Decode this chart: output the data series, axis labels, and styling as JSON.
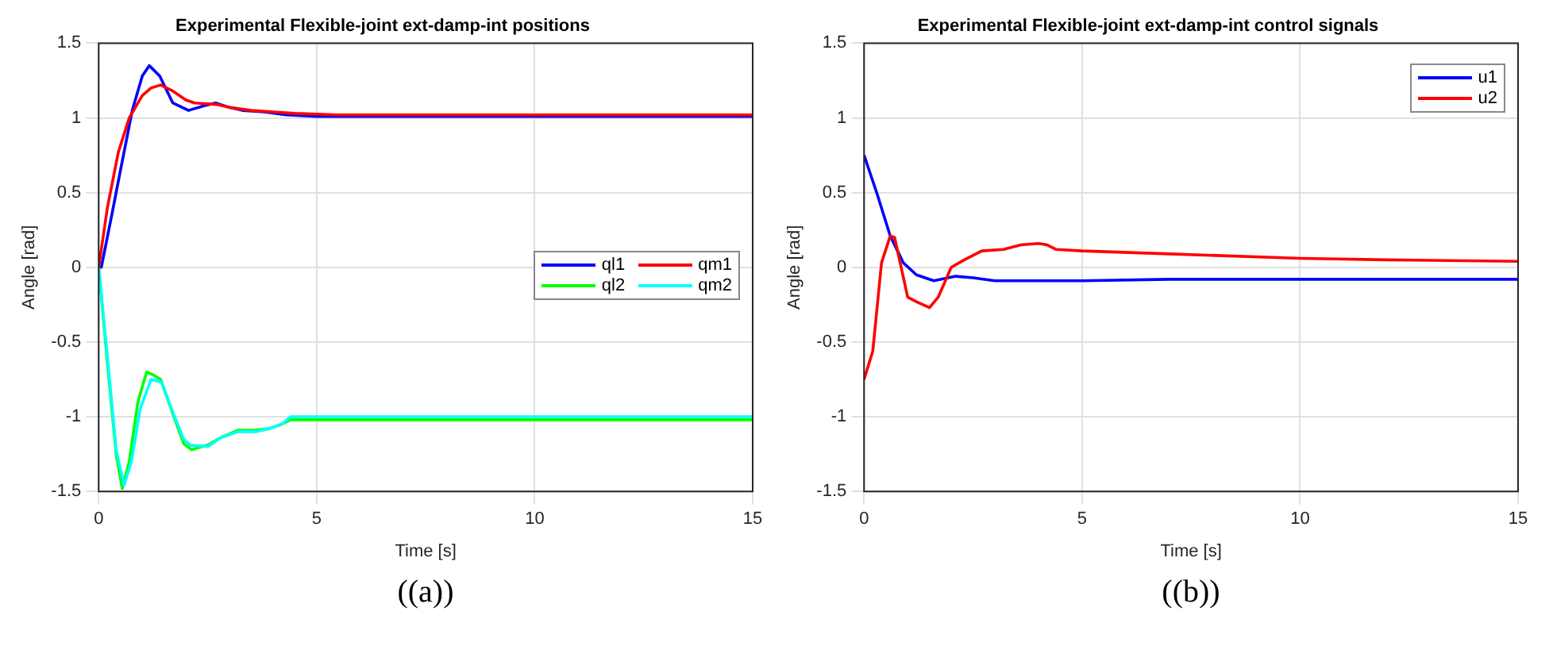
{
  "chart_data": [
    {
      "type": "line",
      "title": "Experimental Flexible-joint ext-damp-int positions",
      "xlabel": "Time [s]",
      "ylabel": "Angle [rad]",
      "annotations": [
        "((a))"
      ],
      "xlim": [
        0,
        15
      ],
      "xticks": [
        0,
        5,
        10,
        15
      ],
      "ylim": [
        -1.5,
        1.5
      ],
      "yticks": [
        -1.5,
        -1,
        -0.5,
        0,
        0.5,
        1,
        1.5
      ],
      "grid": true,
      "legend": "right",
      "series": [
        {
          "name": "ql1",
          "color": "#0000ff",
          "x": [
            0,
            0.06,
            0.3,
            0.5,
            0.77,
            1.0,
            1.16,
            1.4,
            1.7,
            2.06,
            2.4,
            2.68,
            3.0,
            3.3,
            3.8,
            4.3,
            5,
            7,
            10,
            15
          ],
          "values": [
            0,
            0,
            0.35,
            0.65,
            1.05,
            1.28,
            1.35,
            1.28,
            1.1,
            1.05,
            1.08,
            1.1,
            1.07,
            1.05,
            1.04,
            1.02,
            1.01,
            1.01,
            1.01,
            1.01
          ]
        },
        {
          "name": "qm1",
          "color": "#ff0000",
          "x": [
            0,
            0.2,
            0.45,
            0.7,
            1.0,
            1.2,
            1.42,
            1.7,
            2.0,
            2.2,
            2.7,
            3.0,
            3.5,
            4.0,
            4.5,
            5.5,
            7,
            10,
            15
          ],
          "values": [
            0,
            0.4,
            0.77,
            1.0,
            1.15,
            1.2,
            1.22,
            1.18,
            1.12,
            1.1,
            1.09,
            1.07,
            1.05,
            1.04,
            1.03,
            1.02,
            1.02,
            1.02,
            1.02
          ]
        },
        {
          "name": "ql2",
          "color": "#00ff00",
          "x": [
            0,
            0.2,
            0.4,
            0.54,
            0.7,
            0.9,
            1.1,
            1.25,
            1.42,
            1.7,
            1.95,
            2.13,
            2.5,
            2.8,
            3.2,
            3.6,
            3.9,
            4.2,
            4.4,
            5,
            10,
            15
          ],
          "values": [
            0,
            -0.64,
            -1.25,
            -1.48,
            -1.3,
            -0.9,
            -0.7,
            -0.72,
            -0.75,
            -0.98,
            -1.18,
            -1.22,
            -1.19,
            -1.14,
            -1.09,
            -1.09,
            -1.08,
            -1.05,
            -1.02,
            -1.02,
            -1.02,
            -1.02
          ]
        },
        {
          "name": "qm2",
          "color": "#00ffff",
          "x": [
            0,
            0.2,
            0.4,
            0.58,
            0.75,
            0.95,
            1.2,
            1.45,
            1.7,
            1.95,
            2.1,
            2.5,
            2.8,
            3.2,
            3.6,
            3.9,
            4.2,
            4.4,
            5,
            10,
            15
          ],
          "values": [
            0,
            -0.6,
            -1.22,
            -1.46,
            -1.3,
            -0.95,
            -0.75,
            -0.77,
            -0.97,
            -1.15,
            -1.19,
            -1.2,
            -1.14,
            -1.1,
            -1.1,
            -1.08,
            -1.05,
            -1.0,
            -1.0,
            -1.0,
            -1.0
          ]
        }
      ]
    },
    {
      "type": "line",
      "title": "Experimental Flexible-joint ext-damp-int control signals",
      "xlabel": "Time [s]",
      "ylabel": "Angle [rad]",
      "annotations": [
        "((b))"
      ],
      "xlim": [
        0,
        15
      ],
      "xticks": [
        0,
        5,
        10,
        15
      ],
      "ylim": [
        -1.5,
        1.5
      ],
      "yticks": [
        -1.5,
        -1,
        -0.5,
        0,
        0.5,
        1,
        1.5
      ],
      "grid": true,
      "legend": "top right",
      "series": [
        {
          "name": "u1",
          "color": "#0000ff",
          "x": [
            0,
            0.3,
            0.6,
            0.9,
            1.2,
            1.6,
            2.1,
            2.5,
            3.0,
            5,
            7,
            10,
            15
          ],
          "values": [
            0.75,
            0.49,
            0.21,
            0.03,
            -0.05,
            -0.09,
            -0.06,
            -0.07,
            -0.09,
            -0.09,
            -0.08,
            -0.08,
            -0.08
          ]
        },
        {
          "name": "u2",
          "color": "#ff0000",
          "x": [
            0,
            0.2,
            0.4,
            0.6,
            0.7,
            1.0,
            1.2,
            1.5,
            1.7,
            2.0,
            2.3,
            2.7,
            3.2,
            3.6,
            4.0,
            4.2,
            4.4,
            5,
            7,
            10,
            12,
            15
          ],
          "values": [
            -0.75,
            -0.56,
            0.03,
            0.21,
            0.2,
            -0.2,
            -0.23,
            -0.27,
            -0.2,
            0,
            0.05,
            0.11,
            0.12,
            0.15,
            0.16,
            0.15,
            0.12,
            0.11,
            0.09,
            0.06,
            0.05,
            0.04
          ]
        }
      ]
    }
  ]
}
